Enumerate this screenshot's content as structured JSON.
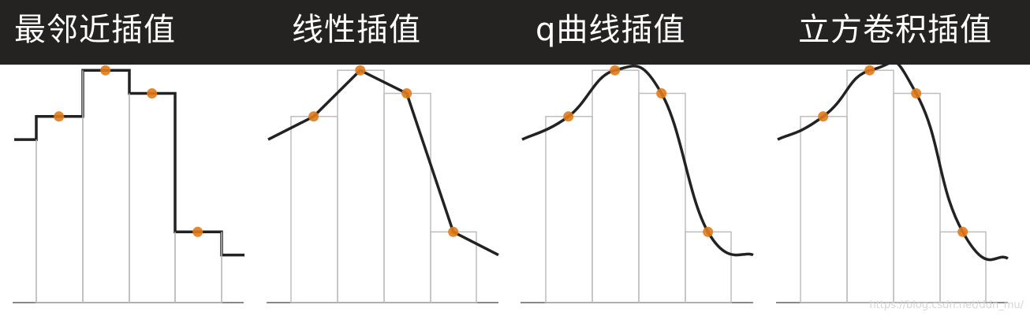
{
  "titles": [
    "最邻近插值",
    "线性插值",
    "q曲线插值",
    "立方卷积插值"
  ],
  "sample_values": [
    4,
    6,
    5,
    -1
  ],
  "colors": {
    "header_bg": "#252321",
    "sample_point": "#e07b1a",
    "curve": "#222222",
    "bar_outline": "#bdbdbd",
    "baseline": "#8a8a8a"
  },
  "watermark": "https://blog.csdn.net/ddn_mu/"
}
